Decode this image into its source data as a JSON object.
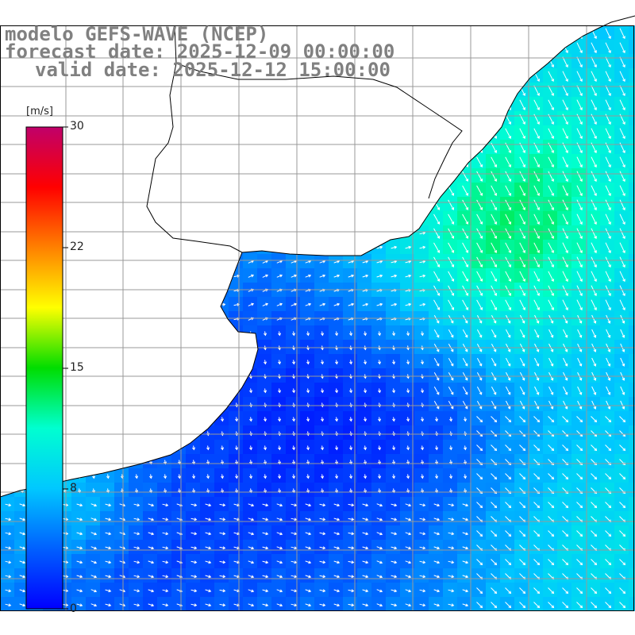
{
  "header": {
    "model": "modelo GEFS-WAVE (NCEP)",
    "forecast": "forecast date: 2025-12-09 00:00:00",
    "valid": "valid date: 2025-12-12 15:00:00"
  },
  "colorbar": {
    "unit": "[m/s]",
    "ticks": [
      {
        "value": 30,
        "label": "30"
      },
      {
        "value": 22,
        "label": "22"
      },
      {
        "value": 15,
        "label": "15"
      },
      {
        "value": 8,
        "label": "8"
      },
      {
        "value": 0,
        "label": "0"
      }
    ],
    "min": 0,
    "max": 30,
    "stops": [
      "#0000ff",
      "#0060ff",
      "#00c8ff",
      "#00ffd0",
      "#00dd00",
      "#ffff00",
      "#ff8000",
      "#ff0000",
      "#c0006a"
    ]
  },
  "colors": {
    "land": "#ffffff",
    "grid": "#999999",
    "coast": "#000000",
    "arrow": "#ffffff"
  }
}
